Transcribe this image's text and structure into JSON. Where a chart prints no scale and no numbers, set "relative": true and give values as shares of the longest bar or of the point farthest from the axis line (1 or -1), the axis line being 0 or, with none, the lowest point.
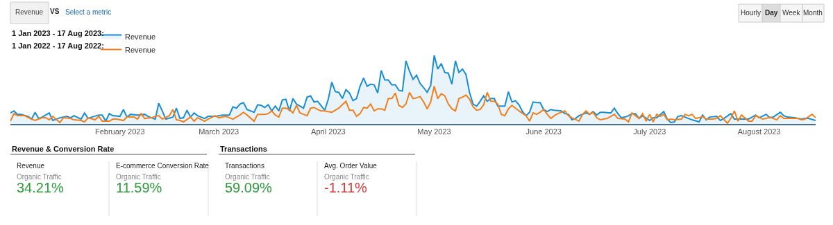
{
  "chart_data": [
    {
      "type": "line",
      "relative": true,
      "legend": "top left",
      "xlim": [
        "2023-01-01",
        "2023-08-17"
      ],
      "xticks": [
        {
          "value": "2023-02-01",
          "label": "February 2023"
        },
        {
          "value": "2023-03-01",
          "label": "March 2023"
        },
        {
          "value": "2023-04-01",
          "label": "April 2023"
        },
        {
          "value": "2023-05-01",
          "label": "May 2023"
        },
        {
          "value": "2023-06-01",
          "label": "June 2023"
        },
        {
          "value": "2023-07-01",
          "label": "July 2023"
        },
        {
          "value": "2023-08-01",
          "label": "August 2023"
        }
      ],
      "annotations": [
        "Revenue",
        "VS",
        "Select a metric",
        "Hourly",
        "Day",
        "Week",
        "Month",
        "1 Jan 2023 - 17 Aug 2023:",
        "1 Jan 2022 - 17 Aug 2022:"
      ],
      "series": [
        {
          "name": "Revenue",
          "type": "area",
          "color": "#1a8dd0",
          "x": [
            "2023-01-01",
            "2023-01-02",
            "2023-01-03",
            "2023-01-04",
            "2023-01-06",
            "2023-01-07",
            "2023-01-08",
            "2023-01-09",
            "2023-01-10",
            "2023-01-12",
            "2023-01-13",
            "2023-01-14",
            "2023-01-15",
            "2023-01-17",
            "2023-01-18",
            "2023-01-19",
            "2023-01-21",
            "2023-01-22",
            "2023-01-23",
            "2023-01-24",
            "2023-01-26",
            "2023-01-27",
            "2023-01-28",
            "2023-01-29",
            "2023-01-30",
            "2023-02-01",
            "2023-02-02",
            "2023-02-03",
            "2023-02-04",
            "2023-02-06",
            "2023-02-08",
            "2023-02-09",
            "2023-02-11",
            "2023-02-12",
            "2023-02-13",
            "2023-02-14",
            "2023-02-16",
            "2023-02-17",
            "2023-02-18",
            "2023-02-19",
            "2023-02-20",
            "2023-02-21",
            "2023-02-22",
            "2023-02-23",
            "2023-02-25",
            "2023-02-26",
            "2023-02-28",
            "2023-03-02",
            "2023-03-04",
            "2023-03-05",
            "2023-03-06",
            "2023-03-07",
            "2023-03-08",
            "2023-03-09",
            "2023-03-11",
            "2023-03-12",
            "2023-03-13",
            "2023-03-14",
            "2023-03-15",
            "2023-03-16",
            "2023-03-17",
            "2023-03-18",
            "2023-03-19",
            "2023-03-20",
            "2023-03-21",
            "2023-03-22",
            "2023-03-23",
            "2023-03-25",
            "2023-03-26",
            "2023-03-27",
            "2023-03-28",
            "2023-03-29",
            "2023-03-31",
            "2023-04-01",
            "2023-04-02",
            "2023-04-03",
            "2023-04-04",
            "2023-04-05",
            "2023-04-06",
            "2023-04-07",
            "2023-04-08",
            "2023-04-09",
            "2023-04-10",
            "2023-04-11",
            "2023-04-12",
            "2023-04-13",
            "2023-04-14",
            "2023-04-15",
            "2023-04-16",
            "2023-04-17",
            "2023-04-18",
            "2023-04-19",
            "2023-04-20",
            "2023-04-21",
            "2023-04-22",
            "2023-04-23",
            "2023-04-24",
            "2023-04-25",
            "2023-04-26",
            "2023-04-27",
            "2023-04-28",
            "2023-04-29",
            "2023-04-30",
            "2023-05-01",
            "2023-05-02",
            "2023-05-03",
            "2023-05-04",
            "2023-05-05",
            "2023-05-06",
            "2023-05-07",
            "2023-05-08",
            "2023-05-09",
            "2023-05-10",
            "2023-05-11",
            "2023-05-12",
            "2023-05-13",
            "2023-05-14",
            "2023-05-15",
            "2023-05-16",
            "2023-05-17",
            "2023-05-18",
            "2023-05-19",
            "2023-05-20",
            "2023-05-21",
            "2023-05-22",
            "2023-05-23",
            "2023-05-24",
            "2023-05-25",
            "2023-05-26",
            "2023-05-27",
            "2023-05-28",
            "2023-05-29",
            "2023-05-30",
            "2023-05-31",
            "2023-06-01",
            "2023-06-02",
            "2023-06-03",
            "2023-06-04",
            "2023-06-06",
            "2023-06-07",
            "2023-06-08",
            "2023-06-09",
            "2023-06-10",
            "2023-06-11",
            "2023-06-13",
            "2023-06-14",
            "2023-06-15",
            "2023-06-16",
            "2023-06-17",
            "2023-06-18",
            "2023-06-20",
            "2023-06-21",
            "2023-06-22",
            "2023-06-23",
            "2023-06-24",
            "2023-06-25",
            "2023-06-26",
            "2023-06-27",
            "2023-06-28",
            "2023-06-29",
            "2023-07-01",
            "2023-07-02",
            "2023-07-03",
            "2023-07-05",
            "2023-07-06",
            "2023-07-07",
            "2023-07-08",
            "2023-07-09",
            "2023-07-10",
            "2023-07-12",
            "2023-07-13",
            "2023-07-15",
            "2023-07-16",
            "2023-07-17",
            "2023-07-18",
            "2023-07-20",
            "2023-07-21",
            "2023-07-22",
            "2023-07-24",
            "2023-07-25",
            "2023-07-26",
            "2023-07-28",
            "2023-07-29",
            "2023-07-31",
            "2023-08-01",
            "2023-08-03",
            "2023-08-04",
            "2023-08-05",
            "2023-08-07",
            "2023-08-08",
            "2023-08-09",
            "2023-08-11",
            "2023-08-13",
            "2023-08-14",
            "2023-08-15",
            "2023-08-17"
          ],
          "values": [
            0.16,
            0.19,
            0.14,
            0.14,
            0.11,
            0.07,
            0.17,
            0.08,
            0.1,
            0.16,
            0.05,
            0.07,
            0.09,
            0.11,
            0.09,
            0.12,
            0.07,
            0.16,
            0.08,
            0.1,
            0.13,
            0.13,
            0.04,
            0.15,
            0.12,
            0.11,
            0.21,
            0.1,
            0.14,
            0.13,
            0.14,
            0.11,
            0.07,
            0.3,
            0.19,
            0.07,
            0.1,
            0.23,
            0.08,
            0.09,
            0.2,
            0.1,
            0.16,
            0.12,
            0.08,
            0.11,
            0.11,
            0.13,
            0.13,
            0.25,
            0.23,
            0.29,
            0.31,
            0.21,
            0.17,
            0.28,
            0.27,
            0.24,
            0.28,
            0.19,
            0.26,
            0.19,
            0.35,
            0.36,
            0.19,
            0.37,
            0.29,
            0.23,
            0.39,
            0.41,
            0.32,
            0.33,
            0.2,
            0.36,
            0.61,
            0.47,
            0.46,
            0.37,
            0.5,
            0.45,
            0.34,
            0.37,
            0.55,
            0.67,
            0.55,
            0.58,
            0.57,
            0.45,
            0.78,
            0.64,
            0.64,
            0.57,
            0.57,
            0.49,
            0.48,
            0.92,
            0.77,
            0.65,
            0.71,
            0.59,
            0.53,
            0.46,
            0.56,
            1,
            0.8,
            0.88,
            0.75,
            0.74,
            0.58,
            0.92,
            0.75,
            0.8,
            0.72,
            0.46,
            0.29,
            0.26,
            0.33,
            0.41,
            0.33,
            0.37,
            0.37,
            0.26,
            0.26,
            0.26,
            0.47,
            0.32,
            0.34,
            0.28,
            0.18,
            0.12,
            0.17,
            0.32,
            0.31,
            0.31,
            0.21,
            0.18,
            0.21,
            0.2,
            0.19,
            0.15,
            0.14,
            0.06,
            0.08,
            0.12,
            0.16,
            0.14,
            0.18,
            0.13,
            0.17,
            0.17,
            0.16,
            0.23,
            0.15,
            0.09,
            0.1,
            0.12,
            0.15,
            0.15,
            0.08,
            0.12,
            0.05,
            0.09,
            0.09,
            0.18,
            0.07,
            0.02,
            0.03,
            0.11,
            0.12,
            0.08,
            0.06,
            0.03,
            0.13,
            0.06,
            0.1,
            0.11,
            0.05,
            0.08,
            0.15,
            0.07,
            0.07,
            0.07,
            0.07,
            0.13,
            0.09,
            0.14,
            0.09,
            0.1,
            0.17,
            0.12,
            0.1,
            0.09,
            0.07,
            0.08,
            0.08,
            0.05
          ]
        },
        {
          "name": "Revenue",
          "type": "line",
          "color": "#f07f1c",
          "x": [
            "2023-01-01",
            "2023-01-02",
            "2023-01-03",
            "2023-01-05",
            "2023-01-07",
            "2023-01-08",
            "2023-01-10",
            "2023-01-11",
            "2023-01-12",
            "2023-01-13",
            "2023-01-15",
            "2023-01-16",
            "2023-01-18",
            "2023-01-19",
            "2023-01-21",
            "2023-01-22",
            "2023-01-23",
            "2023-01-25",
            "2023-01-26",
            "2023-01-27",
            "2023-01-29",
            "2023-01-30",
            "2023-01-31",
            "2023-02-02",
            "2023-02-03",
            "2023-02-05",
            "2023-02-06",
            "2023-02-07",
            "2023-02-08",
            "2023-02-10",
            "2023-02-11",
            "2023-02-12",
            "2023-02-13",
            "2023-02-15",
            "2023-02-16",
            "2023-02-17",
            "2023-02-18",
            "2023-02-19",
            "2023-02-21",
            "2023-02-22",
            "2023-02-23",
            "2023-02-25",
            "2023-02-26",
            "2023-02-28",
            "2023-03-01",
            "2023-03-03",
            "2023-03-04",
            "2023-03-05",
            "2023-03-07",
            "2023-03-08",
            "2023-03-09",
            "2023-03-11",
            "2023-03-12",
            "2023-03-14",
            "2023-03-15",
            "2023-03-16",
            "2023-03-17",
            "2023-03-18",
            "2023-03-19",
            "2023-03-20",
            "2023-03-21",
            "2023-03-22",
            "2023-03-23",
            "2023-03-24",
            "2023-03-25",
            "2023-03-26",
            "2023-03-27",
            "2023-03-28",
            "2023-03-29",
            "2023-03-30",
            "2023-03-31",
            "2023-04-01",
            "2023-04-02",
            "2023-04-03",
            "2023-04-04",
            "2023-04-06",
            "2023-04-07",
            "2023-04-08",
            "2023-04-09",
            "2023-04-10",
            "2023-04-11",
            "2023-04-12",
            "2023-04-13",
            "2023-04-14",
            "2023-04-15",
            "2023-04-16",
            "2023-04-17",
            "2023-04-18",
            "2023-04-19",
            "2023-04-20",
            "2023-04-21",
            "2023-04-22",
            "2023-04-23",
            "2023-04-24",
            "2023-04-25",
            "2023-04-26",
            "2023-04-27",
            "2023-04-28",
            "2023-04-29",
            "2023-04-30",
            "2023-05-01",
            "2023-05-02",
            "2023-05-03",
            "2023-05-04",
            "2023-05-05",
            "2023-05-06",
            "2023-05-07",
            "2023-05-08",
            "2023-05-09",
            "2023-05-10",
            "2023-05-11",
            "2023-05-12",
            "2023-05-13",
            "2023-05-14",
            "2023-05-15",
            "2023-05-16",
            "2023-05-17",
            "2023-05-18",
            "2023-05-19",
            "2023-05-20",
            "2023-05-21",
            "2023-05-22",
            "2023-05-23",
            "2023-05-24",
            "2023-05-25",
            "2023-05-27",
            "2023-05-28",
            "2023-05-29",
            "2023-05-30",
            "2023-05-31",
            "2023-06-01",
            "2023-06-02",
            "2023-06-03",
            "2023-06-04",
            "2023-06-05",
            "2023-06-07",
            "2023-06-08",
            "2023-06-09",
            "2023-06-11",
            "2023-06-12",
            "2023-06-13",
            "2023-06-14",
            "2023-06-15",
            "2023-06-16",
            "2023-06-17",
            "2023-06-19",
            "2023-06-20",
            "2023-06-21",
            "2023-06-22",
            "2023-06-24",
            "2023-06-25",
            "2023-06-26",
            "2023-06-28",
            "2023-06-29",
            "2023-06-30",
            "2023-07-01",
            "2023-07-02",
            "2023-07-03",
            "2023-07-04",
            "2023-07-05",
            "2023-07-06",
            "2023-07-07",
            "2023-07-08",
            "2023-07-10",
            "2023-07-11",
            "2023-07-12",
            "2023-07-13",
            "2023-07-14",
            "2023-07-15",
            "2023-07-16",
            "2023-07-17",
            "2023-07-19",
            "2023-07-20",
            "2023-07-21",
            "2023-07-23",
            "2023-07-24",
            "2023-07-25",
            "2023-07-26",
            "2023-07-27",
            "2023-07-29",
            "2023-07-30",
            "2023-07-31",
            "2023-08-02",
            "2023-08-03",
            "2023-08-04",
            "2023-08-06",
            "2023-08-07",
            "2023-08-08",
            "2023-08-09",
            "2023-08-12",
            "2023-08-13",
            "2023-08-14",
            "2023-08-16",
            "2023-08-17"
          ],
          "values": [
            0.04,
            0.15,
            0.12,
            0.12,
            0.07,
            0.05,
            0.09,
            0.09,
            0.06,
            0.11,
            0.02,
            0.09,
            0.08,
            0.06,
            0.05,
            0.03,
            0.09,
            0.06,
            0.11,
            0.04,
            0.04,
            0.07,
            0.07,
            0.05,
            0.1,
            0.1,
            0.07,
            0.15,
            0.08,
            0.09,
            0.11,
            0.12,
            0.07,
            0.12,
            0.21,
            0.06,
            0.05,
            0.03,
            0.1,
            0.04,
            0.09,
            0.04,
            0.07,
            0.12,
            0.09,
            0.11,
            0.09,
            0.07,
            0.13,
            0.17,
            0.13,
            0.04,
            0.14,
            0.14,
            0.15,
            0.19,
            0.13,
            0.1,
            0.23,
            0.23,
            0.21,
            0.16,
            0.27,
            0.16,
            0.14,
            0.12,
            0.23,
            0.24,
            0.21,
            0.19,
            0.19,
            0.18,
            0.17,
            0.2,
            0.23,
            0.33,
            0.2,
            0.2,
            0.11,
            0.15,
            0.24,
            0.23,
            0.29,
            0.19,
            0.22,
            0.22,
            0.2,
            0.37,
            0.37,
            0.45,
            0.27,
            0.24,
            0.29,
            0.46,
            0.37,
            0.38,
            0.4,
            0.32,
            0.22,
            0.32,
            0.55,
            0.37,
            0.44,
            0.41,
            0.29,
            0.22,
            0.19,
            0.37,
            0.39,
            0.42,
            0.36,
            0.25,
            0.2,
            0.21,
            0.28,
            0.46,
            0.33,
            0.33,
            0.29,
            0.14,
            0.12,
            0.22,
            0.27,
            0.23,
            0.19,
            0.12,
            0.04,
            0.16,
            0.14,
            0.17,
            0.21,
            0.14,
            0.08,
            0.12,
            0.15,
            0.19,
            0.12,
            0.09,
            0.04,
            0.14,
            0.19,
            0.14,
            0.17,
            0.09,
            0.06,
            0.08,
            0.11,
            0.14,
            0.08,
            0.07,
            0.03,
            0.16,
            0.08,
            0.15,
            0.04,
            0.14,
            0.03,
            0.14,
            0.11,
            0.14,
            0.06,
            0.07,
            0.06,
            0.07,
            0.14,
            0.12,
            0.14,
            0.08,
            0.09,
            0.11,
            0.07,
            0.07,
            0.08,
            0.12,
            0.01,
            0.08,
            0.19,
            0.04,
            0.13,
            0.04,
            0.04,
            0.12,
            0.07,
            0.08,
            0.1,
            0.06,
            0.12,
            0.08,
            0.08,
            0.08,
            0.06,
            0.07,
            0.14,
            0.09
          ]
        }
      ]
    },
    {
      "type": "other",
      "title": "Revenue & Conversion Rate",
      "annotations": [
        "Revenue",
        "Organic Traffic",
        "34.21%",
        "E-commerce Conversion Rate",
        "Organic Traffic",
        "11.59%"
      ]
    },
    {
      "type": "other",
      "title": "Transactions",
      "annotations": [
        "Transactions",
        "Organic Traffic",
        "59.09%",
        "Avg. Order Value",
        "Organic Traffic",
        "-1.11%"
      ]
    }
  ]
}
